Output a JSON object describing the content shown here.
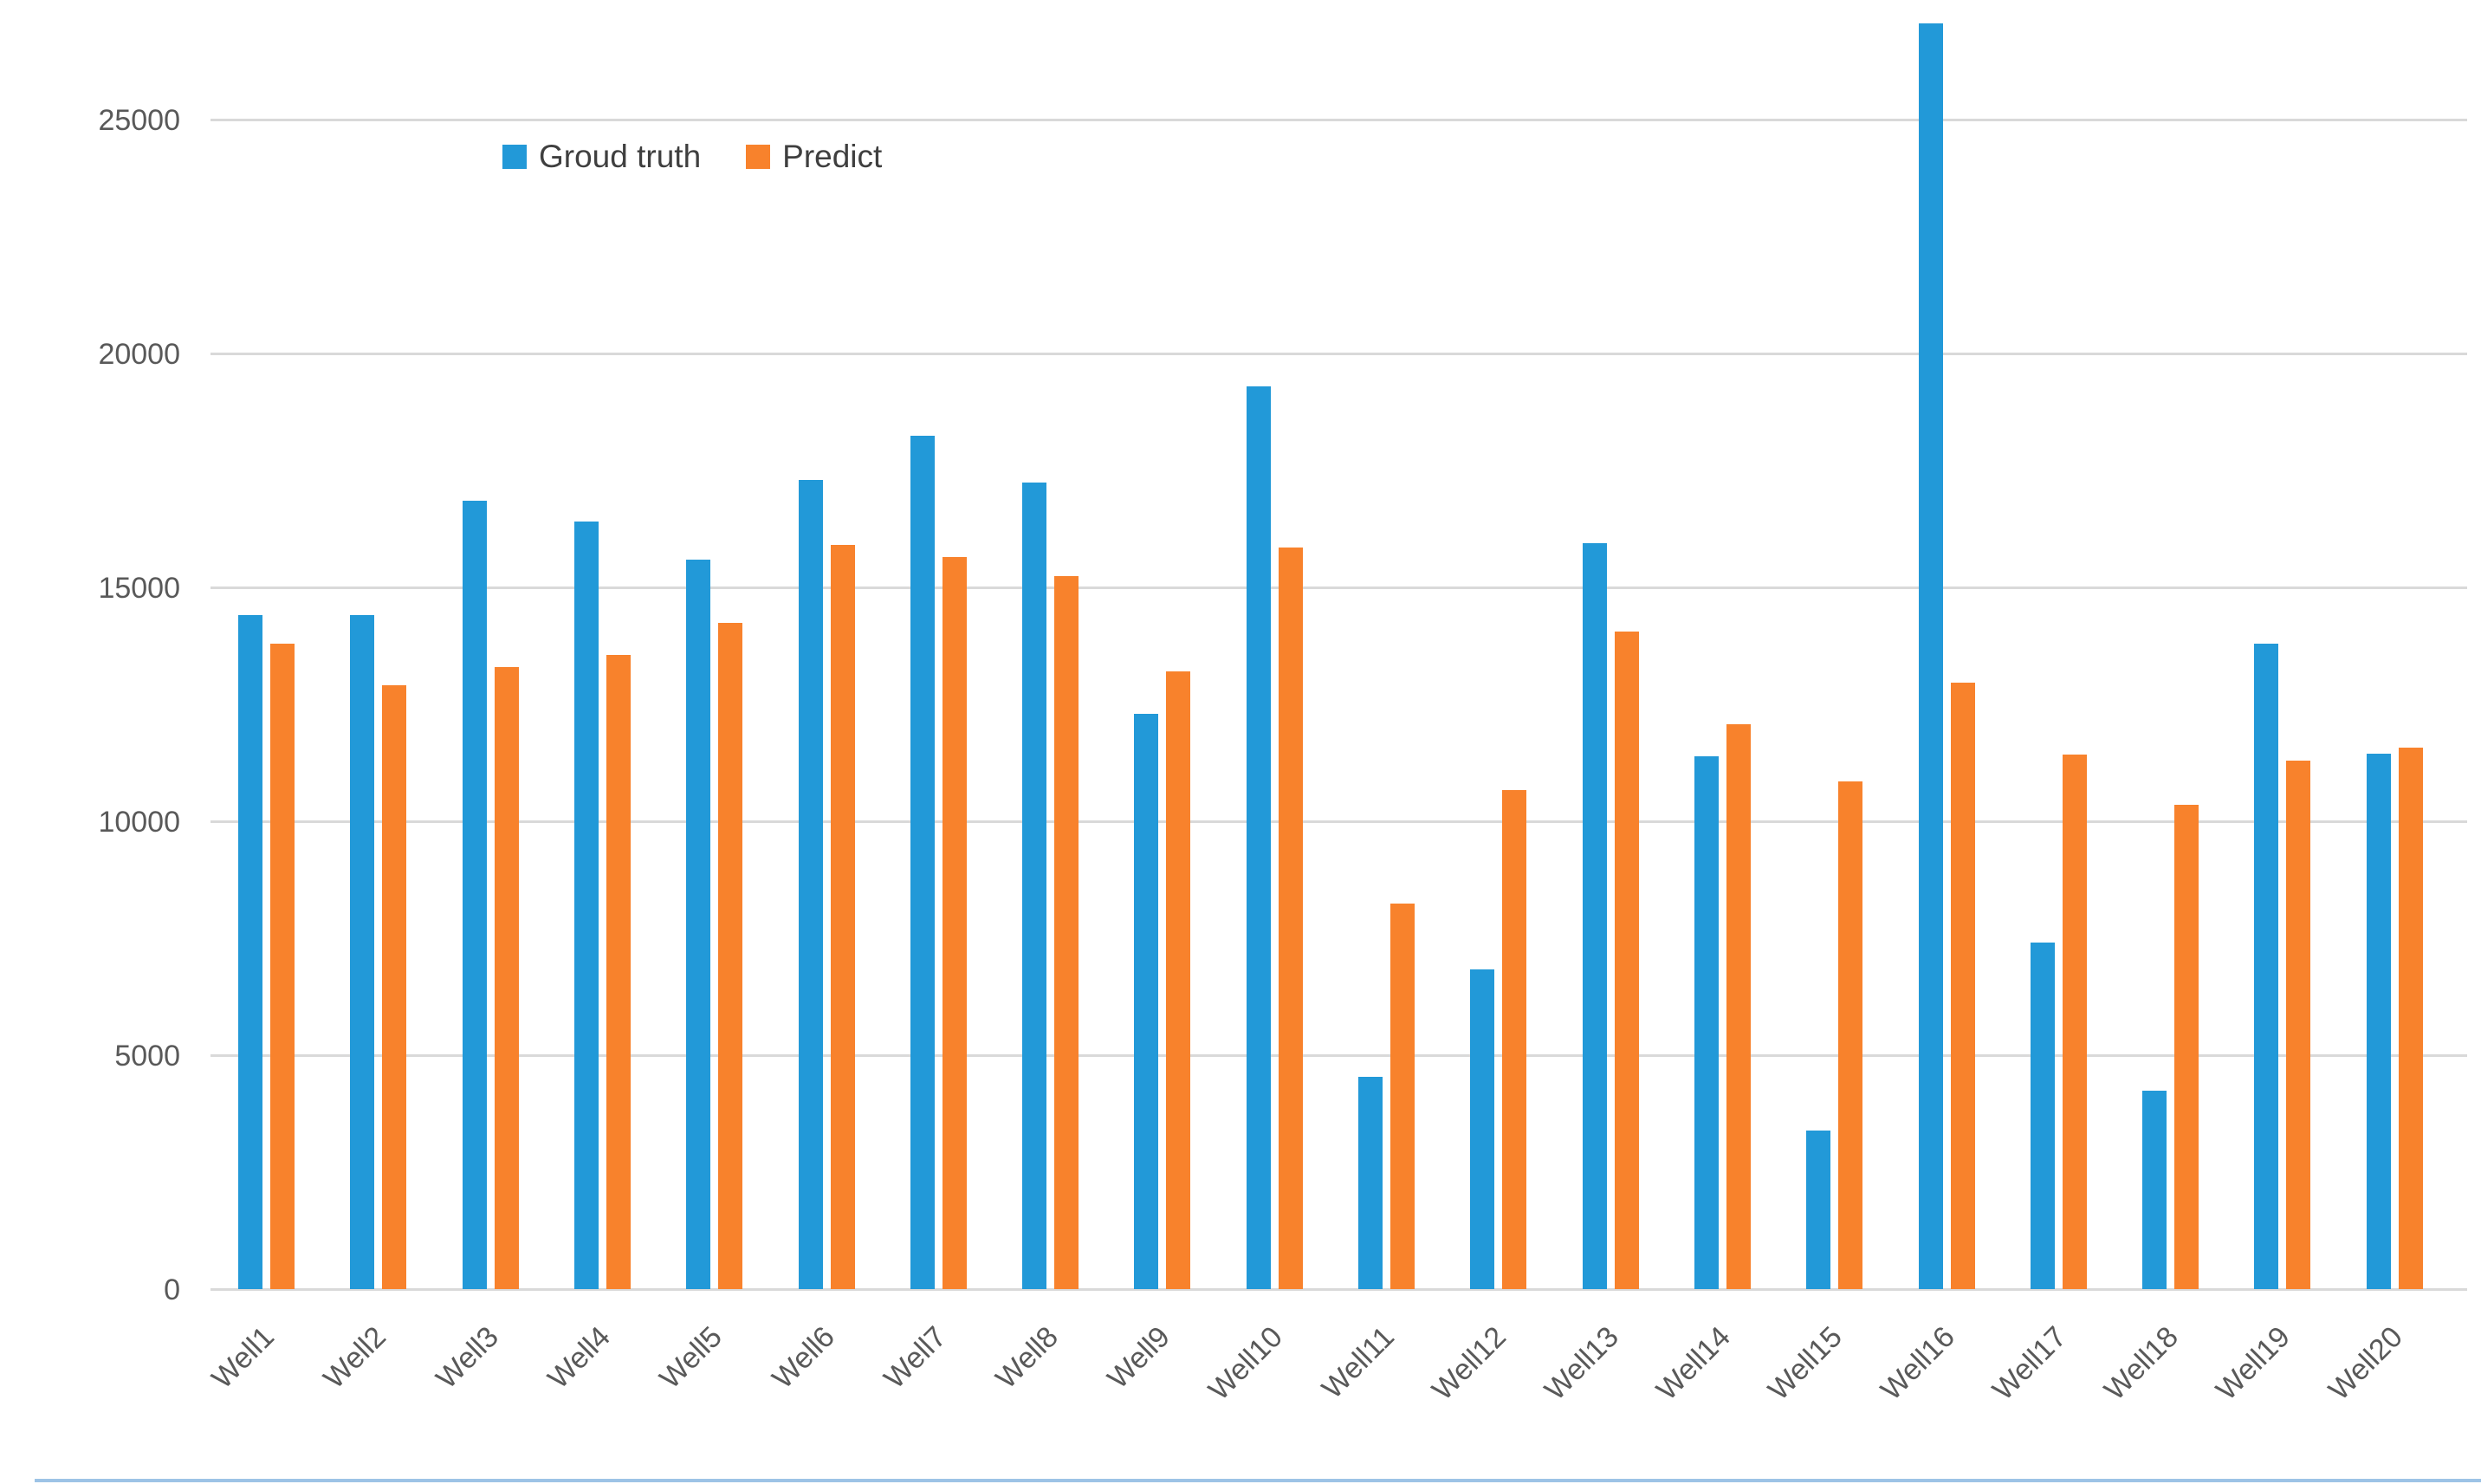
{
  "chart_data": {
    "type": "bar",
    "title": "",
    "categories": [
      "Well1",
      "Well2",
      "Well3",
      "Well4",
      "Well5",
      "Well6",
      "Well7",
      "Well8",
      "Well9",
      "Well10",
      "Well11",
      "Well12",
      "Well13",
      "Well14",
      "Well15",
      "Well16",
      "Well17",
      "Well18",
      "Well19",
      "Well20"
    ],
    "series": [
      {
        "name": "Groud truth",
        "color": "#2299d8",
        "values": [
          14400,
          14400,
          16850,
          16400,
          15600,
          17300,
          18250,
          17250,
          12300,
          19300,
          4530,
          6830,
          15950,
          11380,
          3390,
          27050,
          7400,
          4240,
          13790,
          11440
        ]
      },
      {
        "name": "Predict",
        "color": "#f8822c",
        "values": [
          13800,
          12900,
          13300,
          13550,
          14250,
          15900,
          15650,
          15250,
          13200,
          15850,
          8240,
          10670,
          14050,
          12080,
          10860,
          12970,
          11430,
          10350,
          11290,
          11570
        ]
      }
    ],
    "xlabel": "",
    "ylabel": "",
    "ylim": [
      0,
      27500
    ],
    "y_ticks": [
      0,
      5000,
      10000,
      15000,
      20000,
      25000
    ],
    "y_tick_labels": [
      "0",
      "5000",
      "10000",
      "15000",
      "20000",
      "25000"
    ],
    "grid": true,
    "legend_position": "top-left-inside"
  },
  "colors": {
    "grid": "#d9d9d9",
    "tick_text": "#595959",
    "legend_text": "#3f3f3f",
    "bottom_edge_line": "#9dc3e6"
  }
}
